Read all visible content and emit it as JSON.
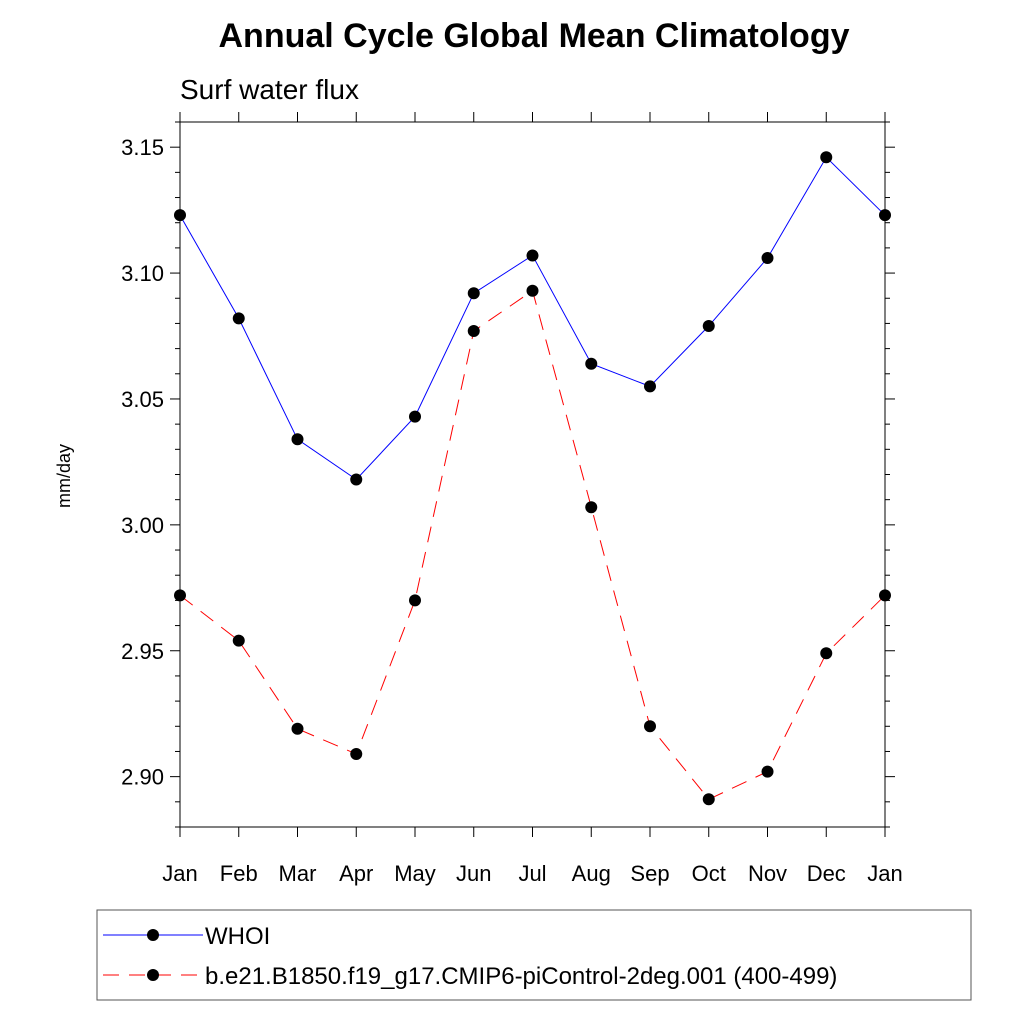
{
  "chart_data": {
    "type": "line",
    "title": "Annual Cycle Global Mean Climatology",
    "subtitle": "Surf water flux",
    "xlabel": "",
    "ylabel": "mm/day",
    "categories": [
      "Jan",
      "Feb",
      "Mar",
      "Apr",
      "May",
      "Jun",
      "Jul",
      "Aug",
      "Sep",
      "Oct",
      "Nov",
      "Dec",
      "Jan"
    ],
    "ylim": [
      2.88,
      3.16
    ],
    "yticks": [
      2.9,
      2.95,
      3.0,
      3.05,
      3.1,
      3.15
    ],
    "ytick_labels": [
      "2.90",
      "2.95",
      "3.00",
      "3.05",
      "3.10",
      "3.15"
    ],
    "grid": false,
    "legend_position": "bottom",
    "series": [
      {
        "name": "WHOI",
        "color": "#0000ff",
        "dash": "solid",
        "marker": "filled-circle",
        "values": [
          3.123,
          3.082,
          3.034,
          3.018,
          3.043,
          3.092,
          3.107,
          3.064,
          3.055,
          3.079,
          3.106,
          3.146,
          3.123
        ]
      },
      {
        "name": "b.e21.B1850.f19_g17.CMIP6-piControl-2deg.001 (400-499)",
        "color": "#ff0000",
        "dash": "dashed",
        "marker": "filled-circle",
        "values": [
          2.972,
          2.954,
          2.919,
          2.909,
          2.97,
          3.077,
          3.093,
          3.007,
          2.92,
          2.891,
          2.902,
          2.949,
          2.972
        ]
      }
    ]
  }
}
